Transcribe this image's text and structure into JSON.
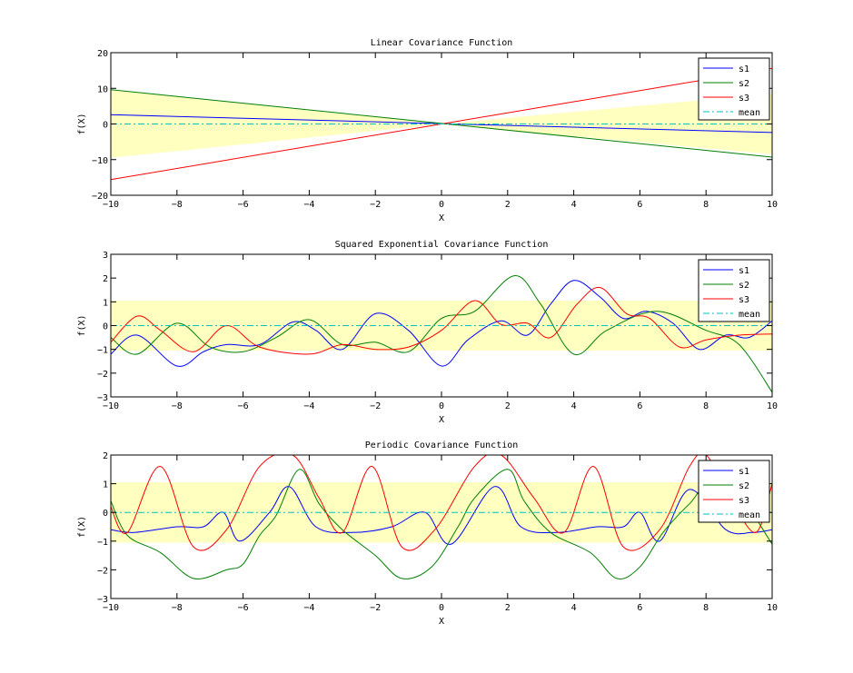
{
  "figure": {
    "background": "#ffffff",
    "band_color": "#ffffc0",
    "series_colors": {
      "s1": "#0000ff",
      "s2": "#007f00",
      "s3": "#ff0000",
      "mean": "#00bfbf"
    }
  },
  "chart_data": [
    {
      "type": "line",
      "title": "Linear Covariance Function",
      "xlabel": "X",
      "ylabel": "f(X)",
      "xlim": [
        -10,
        10
      ],
      "ylim": [
        -20,
        20
      ],
      "xticks": [
        -10,
        -8,
        -6,
        -4,
        -2,
        0,
        2,
        4,
        6,
        8,
        10
      ],
      "yticks": [
        -20,
        -10,
        0,
        10,
        20
      ],
      "legend": [
        "s1",
        "s2",
        "s3",
        "mean"
      ],
      "legend_position": "top-right",
      "band": {
        "x": [
          -10,
          0,
          10
        ],
        "upper": [
          9.5,
          0,
          8.5
        ],
        "lower": [
          -9.5,
          0,
          -8.5
        ]
      },
      "series": [
        {
          "name": "s1",
          "x": [
            -10,
            10
          ],
          "y": [
            2.6,
            -2.4
          ]
        },
        {
          "name": "s2",
          "x": [
            -10,
            10
          ],
          "y": [
            9.6,
            -9.3
          ]
        },
        {
          "name": "s3",
          "x": [
            -10,
            10
          ],
          "y": [
            -15.6,
            15.6
          ]
        },
        {
          "name": "mean",
          "x": [
            -10,
            10
          ],
          "y": [
            0,
            0
          ]
        }
      ]
    },
    {
      "type": "line",
      "title": "Squared Exponential Covariance Function",
      "xlabel": "X",
      "ylabel": "f(X)",
      "xlim": [
        -10,
        10
      ],
      "ylim": [
        -3,
        3
      ],
      "xticks": [
        -10,
        -8,
        -6,
        -4,
        -2,
        0,
        2,
        4,
        6,
        8,
        10
      ],
      "yticks": [
        -3,
        -2,
        -1,
        0,
        1,
        2,
        3
      ],
      "legend": [
        "s1",
        "s2",
        "s3",
        "mean"
      ],
      "legend_position": "top-right",
      "band": {
        "x": [
          -10,
          10
        ],
        "upper": [
          1.05,
          1.05
        ],
        "lower": [
          -1.05,
          -1.05
        ]
      },
      "series": [
        {
          "name": "s1",
          "x": [
            -10,
            -9.2,
            -8,
            -7.2,
            -6.5,
            -5.5,
            -4.5,
            -3.8,
            -3,
            -2,
            -1,
            0,
            0.8,
            1.8,
            2.6,
            3.3,
            4,
            4.8,
            5.5,
            6.2,
            7,
            7.8,
            8.6,
            9.3,
            10
          ],
          "y": [
            -1.2,
            -0.4,
            -1.7,
            -1.1,
            -0.8,
            -0.8,
            0.15,
            -0.2,
            -1,
            0.5,
            -0.2,
            -1.7,
            -0.6,
            0.2,
            -0.4,
            0.9,
            1.9,
            1.2,
            0.3,
            0.6,
            0.1,
            -1,
            -0.4,
            -0.5,
            0.2
          ]
        },
        {
          "name": "s2",
          "x": [
            -10,
            -9.2,
            -8,
            -7,
            -6,
            -5,
            -4,
            -3,
            -2,
            -1,
            0,
            1,
            2.2,
            3,
            4,
            5,
            6.5,
            8,
            9,
            10
          ],
          "y": [
            -0.5,
            -1.2,
            0.1,
            -0.9,
            -1.1,
            -0.5,
            0.25,
            -0.8,
            -0.7,
            -1.1,
            0.3,
            0.6,
            2.1,
            0.9,
            -1.2,
            -0.2,
            0.6,
            -0.2,
            -0.8,
            -2.8
          ]
        },
        {
          "name": "s3",
          "x": [
            -10,
            -9.2,
            -8.5,
            -7.5,
            -6.5,
            -5.5,
            -4,
            -3,
            -2,
            -1,
            0,
            1,
            1.8,
            2.6,
            3.3,
            4.1,
            4.8,
            5.6,
            6.3,
            7.2,
            8,
            9,
            10
          ],
          "y": [
            -0.7,
            0.4,
            -0.2,
            -1.1,
            0,
            -0.9,
            -1.2,
            -0.8,
            -1,
            -0.9,
            -0.2,
            1.05,
            0.05,
            0.1,
            -0.5,
            0.9,
            1.6,
            0.5,
            0.3,
            -0.9,
            -0.6,
            -0.4,
            -0.35
          ]
        },
        {
          "name": "mean",
          "x": [
            -10,
            10
          ],
          "y": [
            0,
            0
          ]
        }
      ]
    },
    {
      "type": "line",
      "title": "Periodic Covariance Function",
      "xlabel": "X",
      "ylabel": "f(X)",
      "xlim": [
        -10,
        10
      ],
      "ylim": [
        -3,
        2
      ],
      "xticks": [
        -10,
        -8,
        -6,
        -4,
        -2,
        0,
        2,
        4,
        6,
        8,
        10
      ],
      "yticks": [
        -3,
        -2,
        -1,
        0,
        1,
        2
      ],
      "legend": [
        "s1",
        "s2",
        "s3",
        "mean"
      ],
      "legend_position": "top-right",
      "band": {
        "x": [
          -10,
          10
        ],
        "upper": [
          1.05,
          1.05
        ],
        "lower": [
          -1.05,
          -1.05
        ]
      },
      "series": [
        {
          "name": "s1",
          "x": [
            -10,
            -9.3,
            -8,
            -7.2,
            -6.6,
            -6.1,
            -5.2,
            -4.6,
            -3.8,
            -2.7,
            -1.5,
            -0.5,
            0.3,
            1.6,
            2.4,
            3.5,
            4.7,
            5.5,
            6,
            6.6,
            7.5,
            8.6,
            9.4,
            10
          ],
          "y": [
            -0.6,
            -0.7,
            -0.5,
            -0.5,
            0,
            -1,
            0,
            0.9,
            -0.5,
            -0.7,
            -0.5,
            0,
            -1.1,
            0.9,
            -0.5,
            -0.7,
            -0.5,
            -0.5,
            0,
            -1,
            0.8,
            -0.6,
            -0.7,
            -0.6
          ]
        },
        {
          "name": "s2",
          "x": [
            -10,
            -9.5,
            -8.5,
            -7.5,
            -6.5,
            -6,
            -5.5,
            -5,
            -4.3,
            -3.7,
            -3,
            -2,
            -1.2,
            -0.3,
            0.5,
            1,
            2,
            2.5,
            3.3,
            4.5,
            5.3,
            6,
            6.7,
            7.5,
            8.5,
            10
          ],
          "y": [
            0.4,
            -0.8,
            -1.4,
            -2.3,
            -2,
            -1.8,
            -0.8,
            -0.1,
            1.5,
            0.3,
            -0.6,
            -1.5,
            -2.3,
            -1.9,
            -0.5,
            0.5,
            1.5,
            0.4,
            -0.7,
            -1.4,
            -2.3,
            -1.9,
            -0.7,
            0.3,
            1.3,
            -1.1
          ]
        },
        {
          "name": "s3",
          "x": [
            -10,
            -9.5,
            -8.5,
            -7.5,
            -6.5,
            -5.5,
            -4.5,
            -3.7,
            -3,
            -2.1,
            -1.2,
            -0.2,
            1,
            1.8,
            2.8,
            3.7,
            4.6,
            5.5,
            6.6,
            7.5,
            8,
            8.7,
            9.5,
            10
          ],
          "y": [
            0.2,
            -0.7,
            1.6,
            -1.2,
            -0.6,
            1.6,
            2,
            0.5,
            -0.7,
            1.6,
            -1.2,
            -0.6,
            1.6,
            2,
            0.5,
            -0.7,
            1.6,
            -1.2,
            -0.6,
            1.6,
            2,
            0.6,
            -0.7,
            1
          ]
        },
        {
          "name": "mean",
          "x": [
            -10,
            10
          ],
          "y": [
            0,
            0
          ]
        }
      ]
    }
  ]
}
